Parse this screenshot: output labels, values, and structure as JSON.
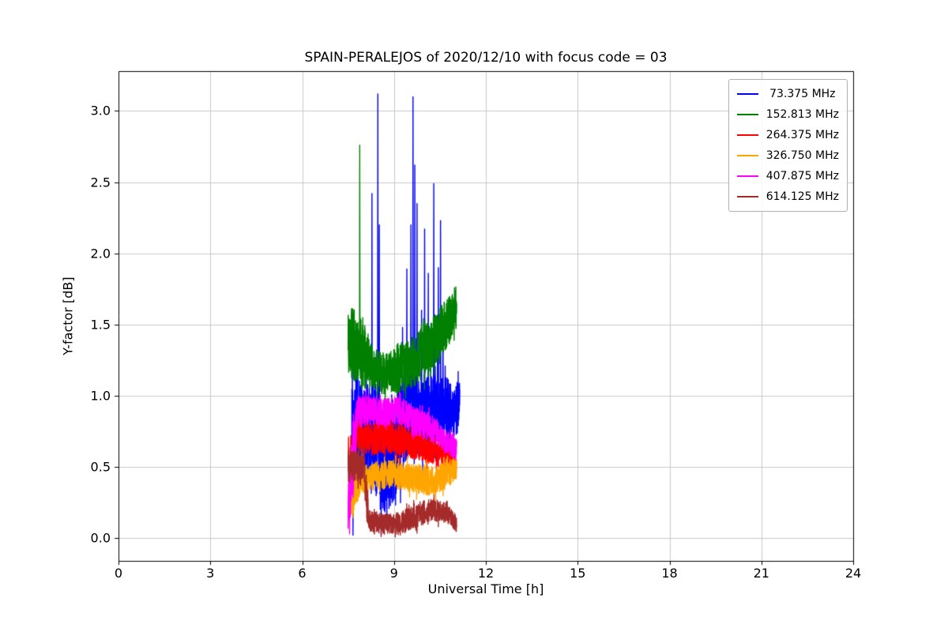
{
  "figure": {
    "background": "#ffffff"
  },
  "chart_data": {
    "type": "line",
    "title": "SPAIN-PERALEJOS of 2020/12/10 with focus code = 03",
    "xlabel": "Universal Time [h]",
    "ylabel": "Y-factor [dB]",
    "xlim": [
      0,
      24
    ],
    "ylim": [
      -0.16,
      3.28
    ],
    "xticks": [
      0,
      3,
      6,
      9,
      12,
      15,
      18,
      21,
      24
    ],
    "yticks": [
      "0.0",
      "0.5",
      "1.0",
      "1.5",
      "2.0",
      "2.5",
      "3.0"
    ],
    "grid": true,
    "grid_color": "#c9c9c9",
    "legend_position": "upper right",
    "data_time_span_hours": [
      7.5,
      11.15
    ],
    "series": [
      {
        "name": "73.375 MHz",
        "label": " 73.375 MHz",
        "color": "#0000ff",
        "x_start": 7.62,
        "x_end": 11.15,
        "trend": [
          [
            7.62,
            0.85,
            0.35
          ],
          [
            8.0,
            0.8,
            0.3
          ],
          [
            8.4,
            0.7,
            0.4
          ],
          [
            8.7,
            0.5,
            0.4
          ],
          [
            9.1,
            0.7,
            0.4
          ],
          [
            9.5,
            0.9,
            0.3
          ],
          [
            10.0,
            0.85,
            0.3
          ],
          [
            10.6,
            0.9,
            0.25
          ],
          [
            11.05,
            0.9,
            0.2
          ],
          [
            11.15,
            1.0,
            0.15
          ]
        ],
        "spikes": [
          [
            7.66,
            0.02
          ],
          [
            8.28,
            2.42
          ],
          [
            8.47,
            3.12
          ],
          [
            8.52,
            2.2
          ],
          [
            8.58,
            0.02
          ],
          [
            9.28,
            1.48
          ],
          [
            9.42,
            1.89
          ],
          [
            9.55,
            2.2
          ],
          [
            9.62,
            3.1
          ],
          [
            9.68,
            2.62
          ],
          [
            9.75,
            2.35
          ],
          [
            9.9,
            1.6
          ],
          [
            10.0,
            2.17
          ],
          [
            10.12,
            1.86
          ],
          [
            10.3,
            2.49
          ],
          [
            10.45,
            1.9
          ],
          [
            10.52,
            2.23
          ],
          [
            10.6,
            1.55
          ]
        ]
      },
      {
        "name": "152.813 MHz",
        "label": "152.813 MHz",
        "color": "#008000",
        "x_start": 7.5,
        "x_end": 11.05,
        "trend": [
          [
            7.5,
            1.4,
            0.25
          ],
          [
            7.95,
            1.3,
            0.25
          ],
          [
            8.3,
            1.2,
            0.15
          ],
          [
            8.7,
            1.15,
            0.15
          ],
          [
            9.2,
            1.2,
            0.18
          ],
          [
            9.7,
            1.25,
            0.18
          ],
          [
            10.2,
            1.35,
            0.18
          ],
          [
            10.7,
            1.5,
            0.18
          ],
          [
            11.05,
            1.62,
            0.16
          ]
        ],
        "spikes": [
          [
            7.88,
            2.76
          ]
        ]
      },
      {
        "name": "264.375 MHz",
        "label": "264.375 MHz",
        "color": "#ff0000",
        "x_start": 7.5,
        "x_end": 11.0,
        "trend": [
          [
            7.5,
            0.55,
            0.18
          ],
          [
            7.8,
            0.72,
            0.12
          ],
          [
            8.3,
            0.7,
            0.12
          ],
          [
            8.8,
            0.72,
            0.12
          ],
          [
            9.3,
            0.68,
            0.12
          ],
          [
            9.8,
            0.65,
            0.1
          ],
          [
            10.4,
            0.6,
            0.1
          ],
          [
            11.0,
            0.58,
            0.1
          ]
        ],
        "spikes": [
          [
            7.53,
            0.22
          ]
        ]
      },
      {
        "name": "326.750 MHz",
        "label": "326.750 MHz",
        "color": "#ffa500",
        "x_start": 7.5,
        "x_end": 11.05,
        "trend": [
          [
            7.5,
            0.25,
            0.15
          ],
          [
            7.9,
            0.4,
            0.1
          ],
          [
            8.4,
            0.44,
            0.1
          ],
          [
            9.0,
            0.45,
            0.1
          ],
          [
            9.6,
            0.42,
            0.1
          ],
          [
            10.2,
            0.4,
            0.1
          ],
          [
            10.7,
            0.44,
            0.1
          ],
          [
            11.05,
            0.5,
            0.08
          ]
        ],
        "spikes": []
      },
      {
        "name": "407.875 MHz",
        "label": "407.875 MHz",
        "color": "#ff00ff",
        "x_start": 7.5,
        "x_end": 11.05,
        "trend": [
          [
            7.5,
            0.2,
            0.16
          ],
          [
            7.68,
            0.55,
            0.25
          ],
          [
            7.8,
            0.88,
            0.12
          ],
          [
            8.2,
            0.9,
            0.1
          ],
          [
            8.7,
            0.88,
            0.1
          ],
          [
            9.2,
            0.9,
            0.1
          ],
          [
            9.7,
            0.82,
            0.1
          ],
          [
            10.2,
            0.78,
            0.1
          ],
          [
            10.6,
            0.7,
            0.08
          ],
          [
            11.05,
            0.62,
            0.08
          ]
        ],
        "spikes": [
          [
            7.55,
            0.03
          ]
        ]
      },
      {
        "name": "614.125 MHz",
        "label": "614.125 MHz",
        "color": "#a52a2a",
        "x_start": 7.5,
        "x_end": 11.05,
        "trend": [
          [
            7.5,
            0.5,
            0.11
          ],
          [
            8.0,
            0.52,
            0.11
          ],
          [
            8.1,
            0.3,
            0.15
          ],
          [
            8.2,
            0.12,
            0.08
          ],
          [
            8.7,
            0.1,
            0.07
          ],
          [
            9.2,
            0.1,
            0.08
          ],
          [
            9.7,
            0.16,
            0.09
          ],
          [
            10.2,
            0.2,
            0.08
          ],
          [
            10.7,
            0.18,
            0.07
          ],
          [
            11.05,
            0.1,
            0.06
          ]
        ],
        "spikes": [
          [
            8.02,
            0.64
          ]
        ]
      }
    ]
  }
}
